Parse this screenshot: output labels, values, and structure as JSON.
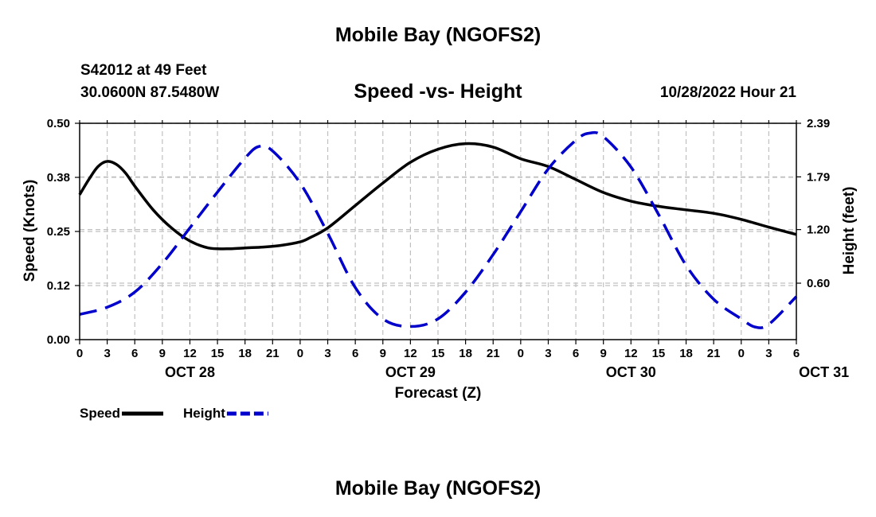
{
  "header": {
    "title": "Mobile Bay (NGOFS2)",
    "station": "S42012 at 49 Feet",
    "coords": "30.0600N  87.5480W",
    "subtitle": "Speed -vs- Height",
    "datetime": "10/28/2022 Hour 21"
  },
  "footer": {
    "title": "Mobile Bay (NGOFS2)"
  },
  "chart_data": {
    "type": "line",
    "title": "Speed -vs- Height",
    "xlabel": "Forecast (Z)",
    "ylabel": "Speed (Knots)",
    "ylabel_right": "Height (feet)",
    "x_ticks": [
      "0",
      "3",
      "6",
      "9",
      "12",
      "15",
      "18",
      "21",
      "0",
      "3",
      "6",
      "9",
      "12",
      "15",
      "18",
      "21",
      "0",
      "3",
      "6",
      "9",
      "12",
      "15",
      "18",
      "21",
      "0",
      "3",
      "6"
    ],
    "date_labels": [
      {
        "label": "OCT 28",
        "hour": 12
      },
      {
        "label": "OCT 29",
        "hour": 36
      },
      {
        "label": "OCT 30",
        "hour": 60
      },
      {
        "label": "OCT 31",
        "hour": 81
      }
    ],
    "xlim": [
      0,
      78
    ],
    "ylim_left": [
      0,
      0.5
    ],
    "y_ticks_left": [
      "0.00",
      "0.12",
      "0.25",
      "0.38",
      "0.50"
    ],
    "ylim_right": [
      -0.032,
      2.39
    ],
    "y_ticks_right": [
      "0.60",
      "1.20",
      "1.79",
      "2.39"
    ],
    "grid": true,
    "legend_position": "bottom-left",
    "series": [
      {
        "name": "Speed",
        "axis": "left",
        "color": "#000000",
        "style": "solid",
        "points": [
          [
            0,
            0.335
          ],
          [
            1,
            0.37
          ],
          [
            2,
            0.4
          ],
          [
            3,
            0.412
          ],
          [
            4,
            0.405
          ],
          [
            5,
            0.385
          ],
          [
            6,
            0.355
          ],
          [
            8,
            0.3
          ],
          [
            10,
            0.258
          ],
          [
            12,
            0.228
          ],
          [
            14,
            0.212
          ],
          [
            16,
            0.21
          ],
          [
            18,
            0.212
          ],
          [
            20,
            0.214
          ],
          [
            22,
            0.218
          ],
          [
            24,
            0.226
          ],
          [
            25,
            0.235
          ],
          [
            27,
            0.258
          ],
          [
            30,
            0.31
          ],
          [
            33,
            0.362
          ],
          [
            36,
            0.41
          ],
          [
            39,
            0.44
          ],
          [
            42,
            0.453
          ],
          [
            45,
            0.445
          ],
          [
            48,
            0.418
          ],
          [
            51,
            0.4
          ],
          [
            54,
            0.37
          ],
          [
            57,
            0.34
          ],
          [
            60,
            0.32
          ],
          [
            63,
            0.308
          ],
          [
            66,
            0.3
          ],
          [
            69,
            0.292
          ],
          [
            72,
            0.278
          ],
          [
            75,
            0.26
          ],
          [
            78,
            0.243
          ]
        ]
      },
      {
        "name": "Height",
        "axis": "right",
        "color": "#0000cc",
        "style": "dashed",
        "points": [
          [
            0,
            0.25
          ],
          [
            3,
            0.33
          ],
          [
            6,
            0.5
          ],
          [
            9,
            0.82
          ],
          [
            12,
            1.22
          ],
          [
            15,
            1.62
          ],
          [
            18,
            2.0
          ],
          [
            19.5,
            2.13
          ],
          [
            21,
            2.08
          ],
          [
            24,
            1.72
          ],
          [
            27,
            1.16
          ],
          [
            30,
            0.55
          ],
          [
            33,
            0.2
          ],
          [
            36,
            0.115
          ],
          [
            39,
            0.2
          ],
          [
            42,
            0.5
          ],
          [
            45,
            0.92
          ],
          [
            48,
            1.4
          ],
          [
            51,
            1.88
          ],
          [
            54,
            2.2
          ],
          [
            55.5,
            2.28
          ],
          [
            57,
            2.24
          ],
          [
            60,
            1.9
          ],
          [
            63,
            1.37
          ],
          [
            66,
            0.8
          ],
          [
            69,
            0.42
          ],
          [
            72,
            0.2
          ],
          [
            73.5,
            0.11
          ],
          [
            75,
            0.14
          ],
          [
            78,
            0.45
          ]
        ]
      }
    ]
  }
}
